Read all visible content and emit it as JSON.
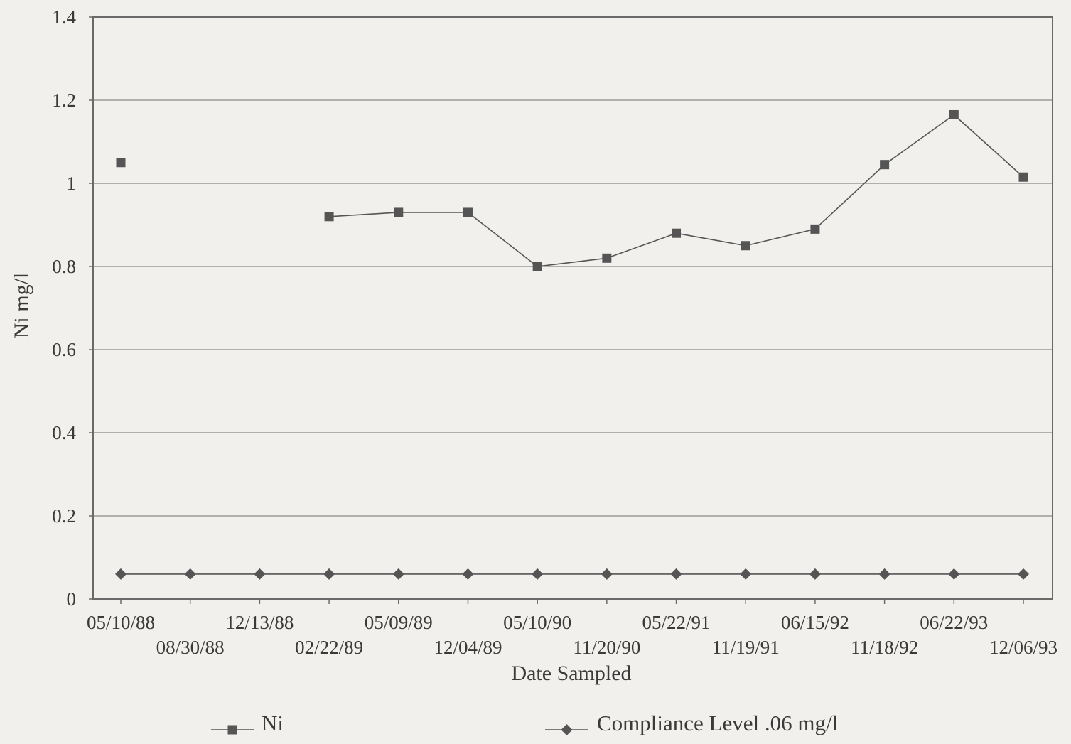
{
  "chart_data": {
    "type": "line",
    "title": "",
    "xlabel": "Date Sampled",
    "ylabel": "Ni mg/l",
    "ylim": [
      0,
      1.4
    ],
    "yticks": [
      "0",
      "0.2",
      "0.4",
      "0.6",
      "0.8",
      "1",
      "1.2",
      "1.4"
    ],
    "grid": true,
    "legend_position": "bottom",
    "categories": [
      "05/10/88",
      "08/30/88",
      "12/13/88",
      "02/22/89",
      "05/09/89",
      "12/04/89",
      "05/10/90",
      "11/20/90",
      "05/22/91",
      "11/19/91",
      "06/15/92",
      "11/18/92",
      "06/22/93",
      "12/06/93"
    ],
    "series": [
      {
        "name": "Ni",
        "marker": "square",
        "color": "#555555",
        "values": [
          1.05,
          null,
          null,
          0.92,
          0.93,
          0.93,
          0.8,
          0.82,
          0.88,
          0.85,
          0.89,
          1.045,
          1.165,
          1.015
        ]
      },
      {
        "name": "Compliance Level .06 mg/l",
        "marker": "diamond",
        "color": "#555555",
        "values": [
          0.06,
          0.06,
          0.06,
          0.06,
          0.06,
          0.06,
          0.06,
          0.06,
          0.06,
          0.06,
          0.06,
          0.06,
          0.06,
          0.06
        ]
      }
    ]
  }
}
